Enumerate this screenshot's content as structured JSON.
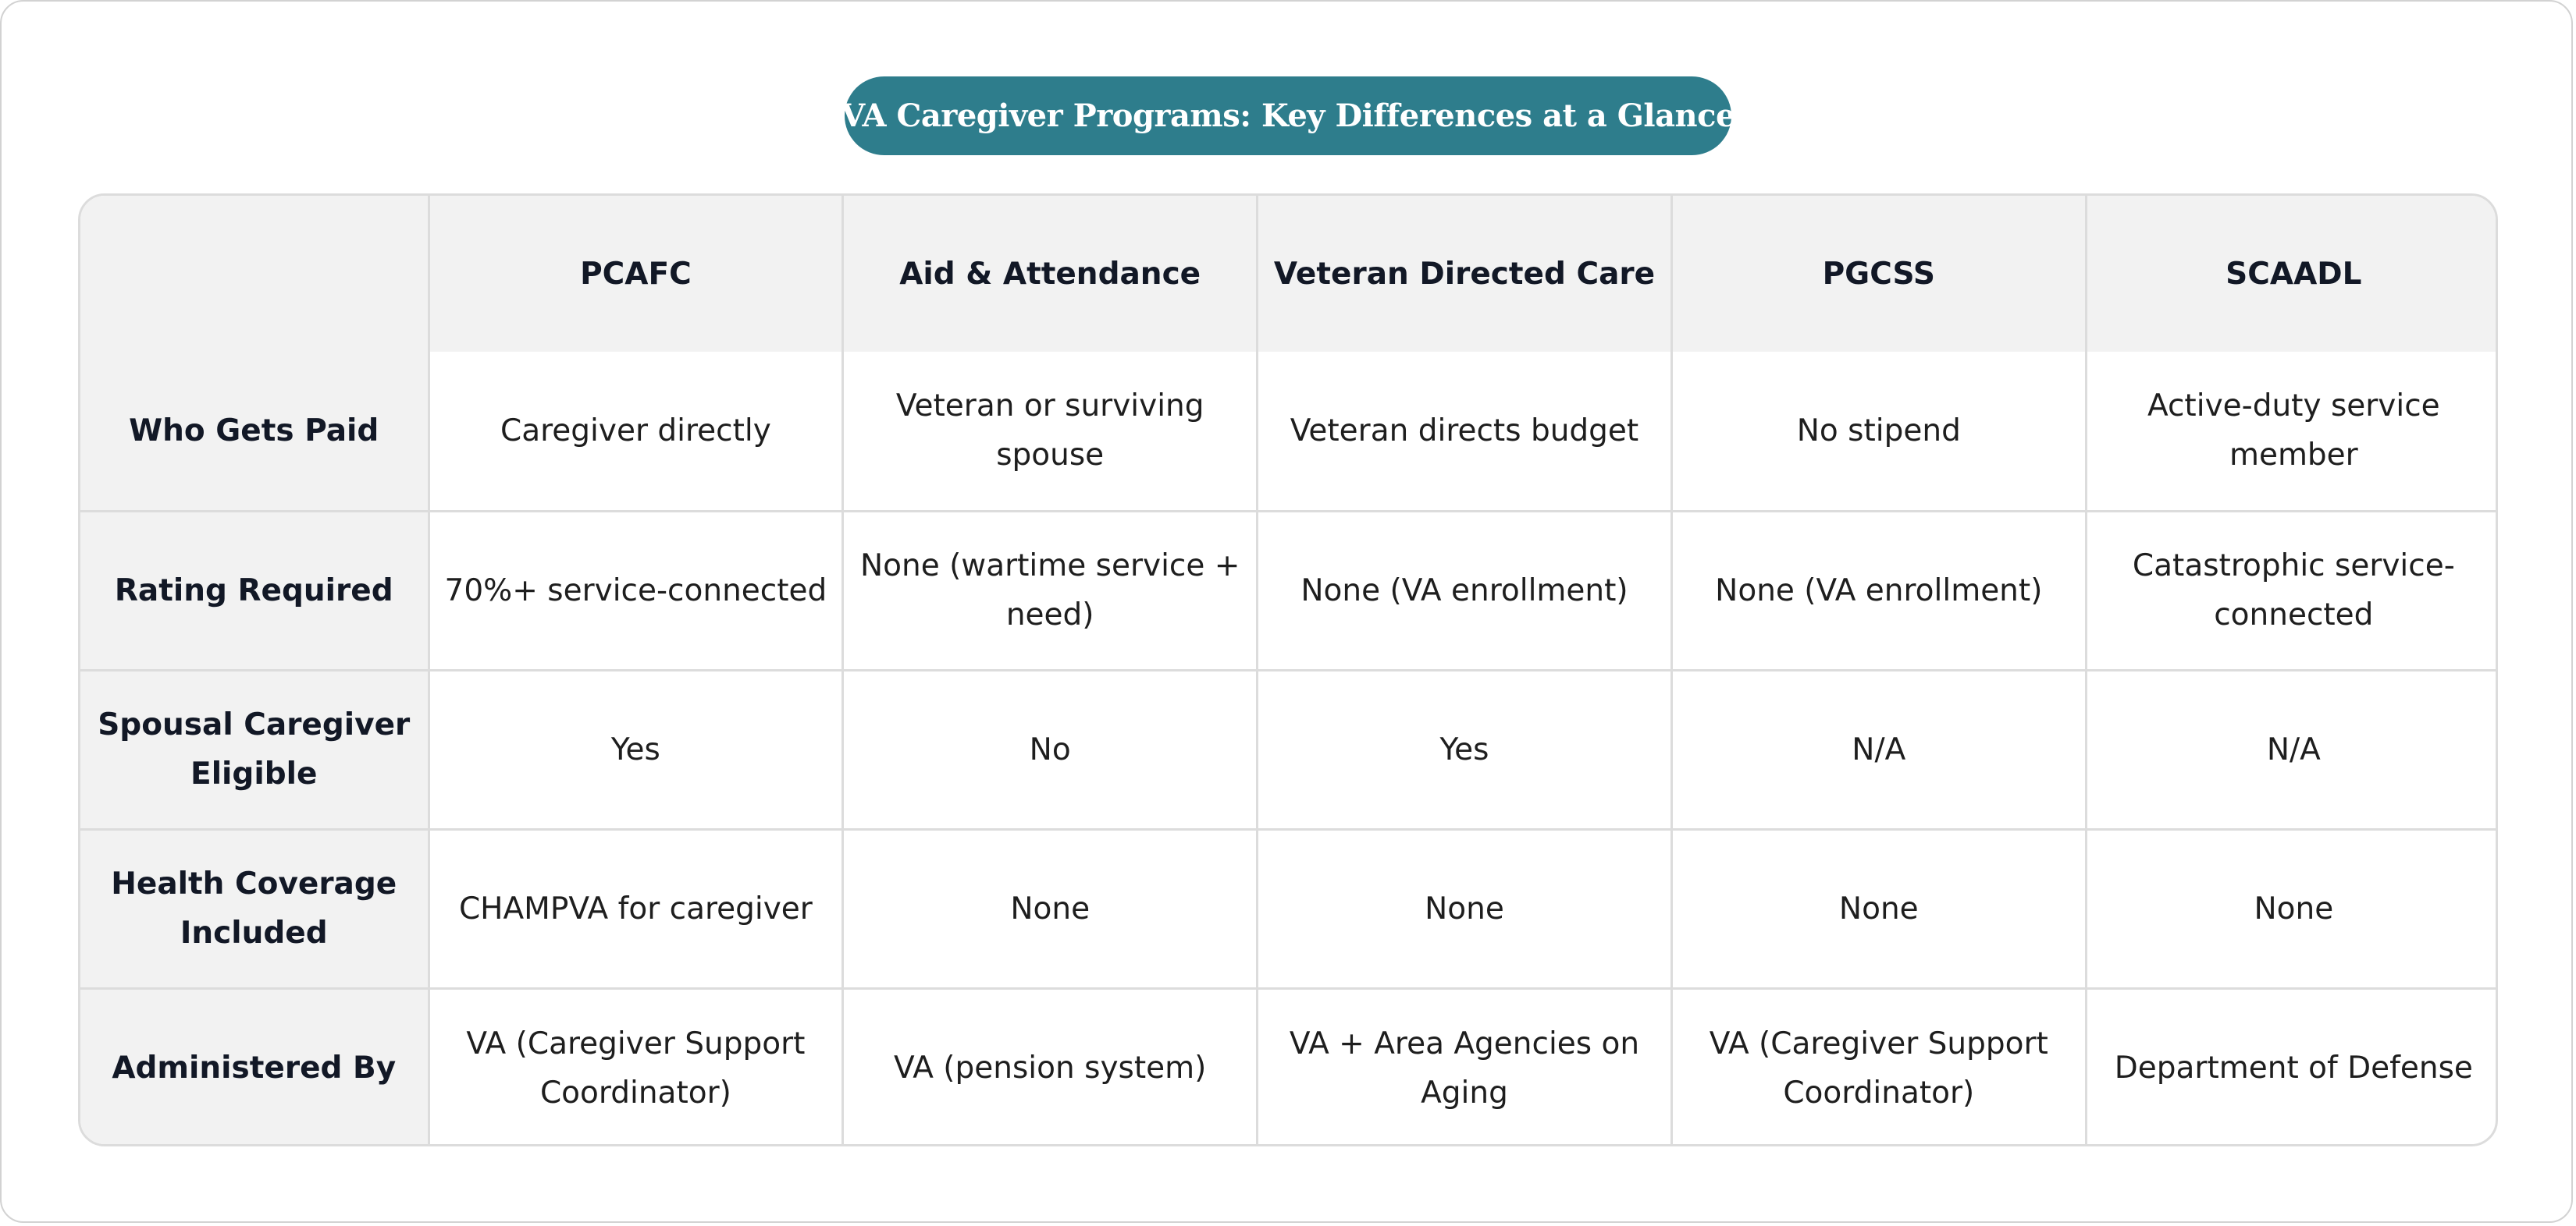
{
  "title": "VA Caregiver Programs: Key Differences at a Glance",
  "table": {
    "columns": [
      "",
      "PCAFC",
      "Aid & Attendance",
      "Veteran Directed Care",
      "PGCSS",
      "SCAADL"
    ],
    "rows": [
      {
        "label": "Who Gets Paid",
        "cells": [
          "Caregiver directly",
          "Veteran or surviving spouse",
          "Veteran directs budget",
          "No stipend",
          "Active-duty service member"
        ]
      },
      {
        "label": "Rating Required",
        "cells": [
          "70%+ service-connected",
          "None (wartime service + need)",
          "None (VA enrollment)",
          "None (VA enrollment)",
          "Catastrophic service-connected"
        ]
      },
      {
        "label": "Spousal Caregiver Eligible",
        "cells": [
          "Yes",
          "No",
          "Yes",
          "N/A",
          "N/A"
        ]
      },
      {
        "label": "Health Coverage Included",
        "cells": [
          "CHAMPVA for caregiver",
          "None",
          "None",
          "None",
          "None"
        ]
      },
      {
        "label": "Administered By",
        "cells": [
          "VA (Caregiver Support Coordinator)",
          "VA (pension system)",
          "VA + Area Agencies on Aging",
          "VA (Caregiver Support Coordinator)",
          "Department of Defense"
        ]
      }
    ]
  },
  "colors": {
    "title_background": "#2e7d8c",
    "header_background": "#f2f2f2",
    "border": "#dcdcdc"
  }
}
